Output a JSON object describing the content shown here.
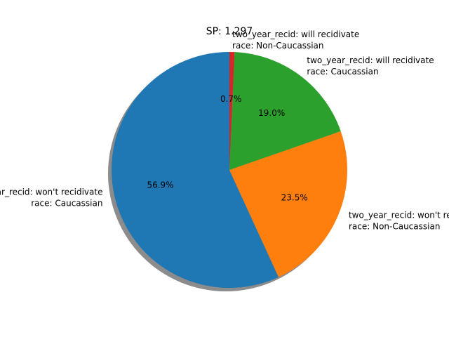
{
  "chart_data": {
    "type": "pie",
    "title": "SP: 1.297",
    "slices": [
      {
        "label": "two_year_recid: won't recidivate\nrace: Caucassian",
        "value": 56.9,
        "pct_text": "56.9%",
        "color": "#1f77b4"
      },
      {
        "label": "two_year_recid: won't recidivate\nrace: Non-Caucassian",
        "value": 23.5,
        "pct_text": "23.5%",
        "color": "#ff7f0e"
      },
      {
        "label": "two_year_recid: will recidivate\nrace: Caucassian",
        "value": 19.0,
        "pct_text": "19.0%",
        "color": "#2ca02c"
      },
      {
        "label": "two_year_recid: will recidivate\nrace: Non-Caucassian",
        "value": 0.7,
        "pct_text": "0.7%",
        "color": "#d62728"
      }
    ],
    "start_angle": 90,
    "direction": "counterclockwise",
    "shadow": true
  }
}
